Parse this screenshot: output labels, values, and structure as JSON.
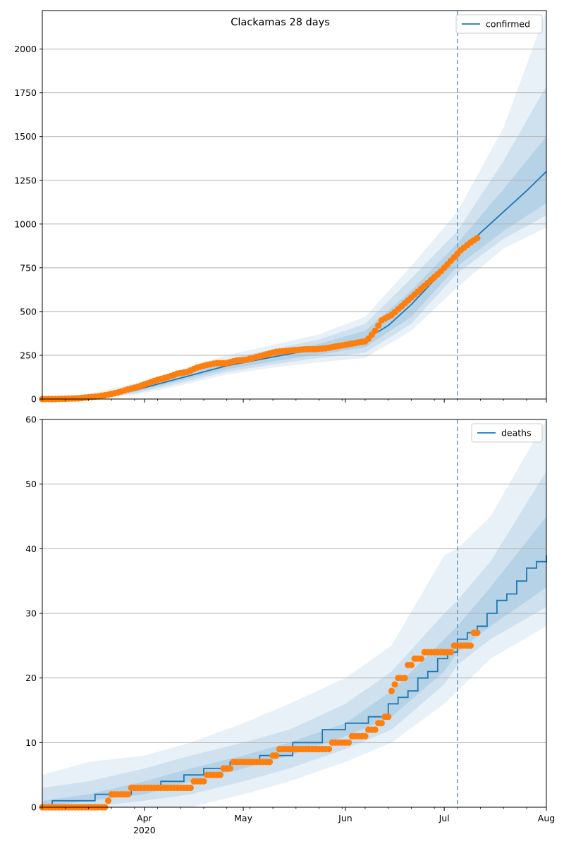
{
  "chart_data": [
    {
      "type": "line",
      "title": "Clackamas 28 days",
      "xlabel": "",
      "ylabel": "",
      "ylim": [
        0,
        2220
      ],
      "yticks": [
        0,
        250,
        500,
        750,
        1000,
        1250,
        1500,
        1750,
        2000
      ],
      "grid": "horizontal",
      "legend": {
        "placement": "top-right",
        "entries": [
          "confirmed"
        ]
      },
      "forecast_start": "2020-07-05",
      "series": [
        {
          "name": "confirmed",
          "kind": "model_median",
          "color": "#1f77b4",
          "x": [
            "2020-03-01",
            "2020-03-08",
            "2020-03-15",
            "2020-03-22",
            "2020-03-29",
            "2020-04-05",
            "2020-04-12",
            "2020-04-19",
            "2020-04-26",
            "2020-05-03",
            "2020-05-10",
            "2020-05-17",
            "2020-05-24",
            "2020-05-31",
            "2020-06-07",
            "2020-06-14",
            "2020-06-21",
            "2020-06-28",
            "2020-07-05",
            "2020-07-12",
            "2020-07-19",
            "2020-07-26",
            "2020-08-01"
          ],
          "y": [
            0,
            3,
            10,
            25,
            50,
            85,
            120,
            155,
            190,
            215,
            240,
            265,
            285,
            305,
            340,
            420,
            540,
            680,
            820,
            950,
            1070,
            1190,
            1300
          ]
        },
        {
          "name": "observed confirmed",
          "kind": "observed_points",
          "color": "#ff7f0e",
          "x": [
            "2020-03-01",
            "2020-03-05",
            "2020-03-08",
            "2020-03-12",
            "2020-03-15",
            "2020-03-18",
            "2020-03-21",
            "2020-03-24",
            "2020-03-27",
            "2020-03-30",
            "2020-04-02",
            "2020-04-05",
            "2020-04-08",
            "2020-04-11",
            "2020-04-14",
            "2020-04-17",
            "2020-04-20",
            "2020-04-23",
            "2020-04-26",
            "2020-04-29",
            "2020-05-02",
            "2020-05-05",
            "2020-05-08",
            "2020-05-11",
            "2020-05-14",
            "2020-05-17",
            "2020-05-20",
            "2020-05-23",
            "2020-05-26",
            "2020-05-29",
            "2020-06-01",
            "2020-06-04",
            "2020-06-07",
            "2020-06-08",
            "2020-06-10",
            "2020-06-12",
            "2020-06-15",
            "2020-06-18",
            "2020-06-21",
            "2020-06-24",
            "2020-06-27",
            "2020-06-30",
            "2020-07-03",
            "2020-07-06",
            "2020-07-09",
            "2020-07-11"
          ],
          "y": [
            0,
            0,
            2,
            4,
            10,
            15,
            25,
            38,
            55,
            70,
            90,
            110,
            125,
            145,
            155,
            180,
            195,
            205,
            205,
            220,
            225,
            240,
            255,
            270,
            275,
            280,
            285,
            285,
            290,
            300,
            310,
            320,
            330,
            345,
            390,
            450,
            480,
            530,
            580,
            630,
            680,
            730,
            790,
            850,
            895,
            920
          ]
        },
        {
          "name": "uncertainty bands",
          "kind": "bands",
          "color": "#1f77b4",
          "x": [
            "2020-03-01",
            "2020-03-15",
            "2020-03-29",
            "2020-04-12",
            "2020-04-26",
            "2020-05-10",
            "2020-05-24",
            "2020-06-07",
            "2020-06-21",
            "2020-07-05",
            "2020-07-19",
            "2020-08-01"
          ],
          "median": [
            0,
            10,
            50,
            120,
            190,
            240,
            285,
            340,
            540,
            820,
            1070,
            1300
          ],
          "inner": [
            [
              0,
              0
            ],
            [
              6,
              14
            ],
            [
              40,
              60
            ],
            [
              105,
              135
            ],
            [
              170,
              210
            ],
            [
              215,
              265
            ],
            [
              255,
              315
            ],
            [
              295,
              390
            ],
            [
              470,
              620
            ],
            [
              760,
              890
            ],
            [
              960,
              1200
            ],
            [
              1120,
              1500
            ]
          ],
          "middle": [
            [
              0,
              2
            ],
            [
              3,
              20
            ],
            [
              32,
              72
            ],
            [
              92,
              150
            ],
            [
              155,
              228
            ],
            [
              198,
              285
            ],
            [
              235,
              340
            ],
            [
              265,
              430
            ],
            [
              430,
              690
            ],
            [
              720,
              960
            ],
            [
              915,
              1360
            ],
            [
              1050,
              1790
            ]
          ],
          "outer": [
            [
              0,
              5
            ],
            [
              0,
              30
            ],
            [
              22,
              88
            ],
            [
              78,
              168
            ],
            [
              140,
              250
            ],
            [
              180,
              310
            ],
            [
              210,
              370
            ],
            [
              235,
              470
            ],
            [
              390,
              760
            ],
            [
              640,
              1070
            ],
            [
              860,
              1550
            ],
            [
              980,
              2220
            ]
          ]
        }
      ]
    },
    {
      "type": "line",
      "title": "",
      "xlabel": "",
      "ylabel": "",
      "ylim": [
        0,
        60
      ],
      "yticks": [
        0,
        10,
        20,
        30,
        40,
        50,
        60
      ],
      "xticks": [
        {
          "date": "2020-04-01",
          "label": "Apr"
        },
        {
          "date": "2020-05-01",
          "label": "May"
        },
        {
          "date": "2020-06-01",
          "label": "Jun"
        },
        {
          "date": "2020-07-01",
          "label": "Jul"
        },
        {
          "date": "2020-08-01",
          "label": "Aug"
        }
      ],
      "year_label": "2020",
      "xlim": [
        "2020-03-01",
        "2020-08-01"
      ],
      "grid": "horizontal",
      "legend": {
        "placement": "top-right",
        "entries": [
          "deaths"
        ]
      },
      "forecast_start": "2020-07-05",
      "series": [
        {
          "name": "deaths",
          "kind": "model_median_step",
          "color": "#1f77b4",
          "x": [
            "2020-03-01",
            "2020-03-04",
            "2020-03-17",
            "2020-03-28",
            "2020-04-06",
            "2020-04-13",
            "2020-04-19",
            "2020-04-27",
            "2020-05-06",
            "2020-05-16",
            "2020-05-25",
            "2020-06-01",
            "2020-06-08",
            "2020-06-14",
            "2020-06-17",
            "2020-06-20",
            "2020-06-23",
            "2020-06-26",
            "2020-06-29",
            "2020-07-02",
            "2020-07-05",
            "2020-07-08",
            "2020-07-11",
            "2020-07-14",
            "2020-07-17",
            "2020-07-20",
            "2020-07-23",
            "2020-07-26",
            "2020-07-29",
            "2020-08-01"
          ],
          "y": [
            0,
            1,
            2,
            3,
            4,
            5,
            6,
            7,
            8,
            10,
            12,
            13,
            14,
            16,
            17,
            18,
            20,
            21,
            23,
            24,
            26,
            27,
            28,
            30,
            32,
            33,
            35,
            37,
            38,
            39
          ]
        },
        {
          "name": "observed deaths",
          "kind": "observed_points",
          "color": "#ff7f0e",
          "x": [
            "2020-03-01",
            "2020-03-10",
            "2020-03-20",
            "2020-03-21",
            "2020-03-22",
            "2020-03-27",
            "2020-03-28",
            "2020-04-05",
            "2020-04-15",
            "2020-04-16",
            "2020-04-20",
            "2020-04-25",
            "2020-04-28",
            "2020-05-05",
            "2020-05-10",
            "2020-05-12",
            "2020-05-20",
            "2020-05-25",
            "2020-05-28",
            "2020-06-03",
            "2020-06-08",
            "2020-06-11",
            "2020-06-13",
            "2020-06-14",
            "2020-06-15",
            "2020-06-16",
            "2020-06-17",
            "2020-06-20",
            "2020-06-22",
            "2020-06-25",
            "2020-07-02",
            "2020-07-04",
            "2020-07-08",
            "2020-07-10",
            "2020-07-11"
          ],
          "y": [
            0,
            0,
            0,
            1,
            2,
            2,
            3,
            3,
            3,
            4,
            5,
            6,
            7,
            7,
            8,
            9,
            9,
            9,
            10,
            11,
            12,
            13,
            14,
            14,
            18,
            19,
            20,
            22,
            23,
            24,
            24,
            25,
            25,
            27,
            27
          ]
        },
        {
          "name": "uncertainty bands",
          "kind": "bands",
          "color": "#1f77b4",
          "x": [
            "2020-03-01",
            "2020-03-15",
            "2020-04-01",
            "2020-04-15",
            "2020-05-01",
            "2020-05-15",
            "2020-06-01",
            "2020-06-15",
            "2020-07-01",
            "2020-07-05",
            "2020-07-15",
            "2020-08-01"
          ],
          "median": [
            0,
            1,
            3,
            5,
            7,
            9,
            12,
            16,
            23,
            26,
            31,
            39
          ],
          "inner": [
            [
              0,
              1
            ],
            [
              1,
              2
            ],
            [
              2,
              4
            ],
            [
              4,
              6
            ],
            [
              6,
              8
            ],
            [
              8,
              10
            ],
            [
              11,
              13
            ],
            [
              14,
              18
            ],
            [
              21,
              26
            ],
            [
              24,
              28
            ],
            [
              28,
              34
            ],
            [
              34,
              45
            ]
          ],
          "middle": [
            [
              0,
              3
            ],
            [
              0,
              4
            ],
            [
              1,
              6
            ],
            [
              2,
              8
            ],
            [
              4,
              10
            ],
            [
              6,
              12
            ],
            [
              9,
              16
            ],
            [
              12,
              21
            ],
            [
              19,
              30
            ],
            [
              22,
              32
            ],
            [
              26,
              38
            ],
            [
              31,
              52
            ]
          ],
          "outer": [
            [
              0,
              5
            ],
            [
              0,
              7
            ],
            [
              0,
              8
            ],
            [
              0,
              10
            ],
            [
              2,
              13
            ],
            [
              4,
              16
            ],
            [
              7,
              20
            ],
            [
              10,
              25
            ],
            [
              16,
              39
            ],
            [
              18,
              40
            ],
            [
              23,
              45
            ],
            [
              28,
              60
            ]
          ]
        }
      ]
    }
  ]
}
